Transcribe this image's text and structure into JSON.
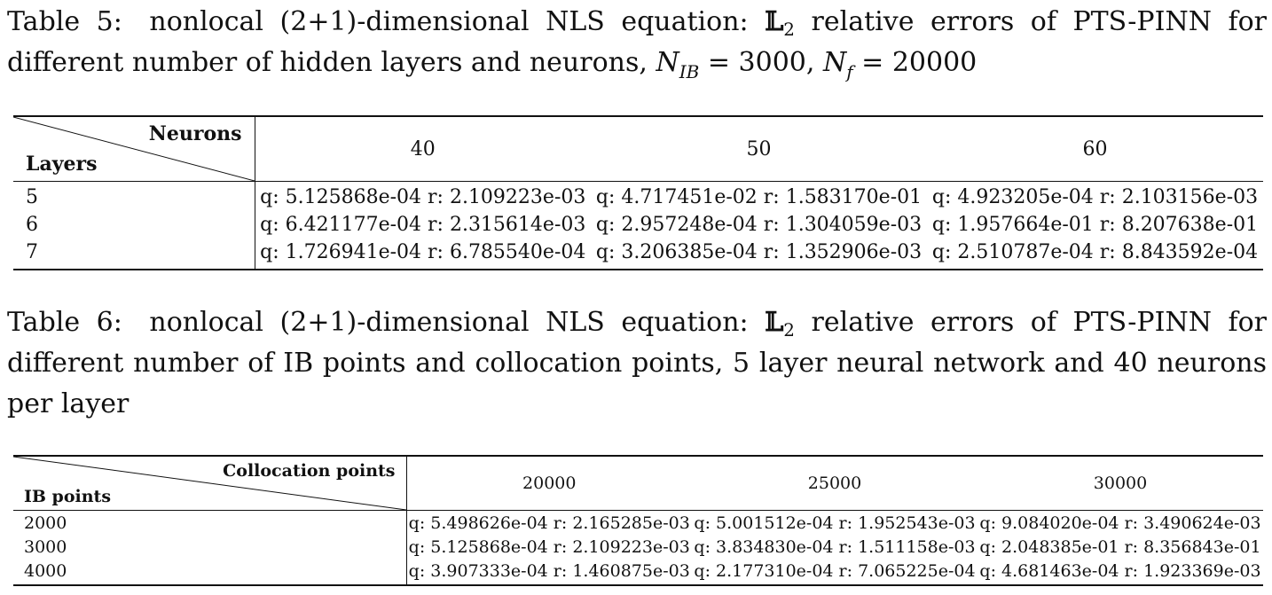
{
  "table5": {
    "caption_label": "Table 5:",
    "caption_text": "nonlocal (2+1)-dimensional NLS equation:",
    "caption_norm": "𝕃",
    "caption_norm_sub": "2",
    "caption_rest": "relative errors of PTS-PINN for different number of hidden layers and neurons,",
    "caption_nib_sym": "N",
    "caption_nib_sub": "IB",
    "caption_nib_val": "= 3000,",
    "caption_nf_sym": "N",
    "caption_nf_sub": "f",
    "caption_nf_val": "= 20000",
    "corner_col_label": "Neurons",
    "corner_row_label": "Layers",
    "columns": [
      "40",
      "50",
      "60"
    ],
    "rows": [
      {
        "label": "5",
        "cells": [
          "q: 5.125868e-04 r: 2.109223e-03",
          "q: 4.717451e-02 r: 1.583170e-01",
          "q: 4.923205e-04 r: 2.103156e-03"
        ]
      },
      {
        "label": "6",
        "cells": [
          "q: 6.421177e-04 r: 2.315614e-03",
          "q: 2.957248e-04 r: 1.304059e-03",
          "q: 1.957664e-01 r: 8.207638e-01"
        ]
      },
      {
        "label": "7",
        "cells": [
          "q: 1.726941e-04 r: 6.785540e-04",
          "q: 3.206385e-04 r: 1.352906e-03",
          "q: 2.510787e-04 r: 8.843592e-04"
        ]
      }
    ]
  },
  "table6": {
    "caption_label": "Table 6:",
    "caption_text": "nonlocal (2+1)-dimensional NLS equation:",
    "caption_norm": "𝕃",
    "caption_norm_sub": "2",
    "caption_rest": "relative errors of PTS-PINN for different number of IB points and collocation points, 5 layer neural network and 40 neurons per layer",
    "corner_col_label": "Collocation points",
    "corner_row_label": "IB points",
    "columns": [
      "20000",
      "25000",
      "30000"
    ],
    "rows": [
      {
        "label": "2000",
        "cells": [
          "q: 5.498626e-04 r: 2.165285e-03",
          "q: 5.001512e-04 r: 1.952543e-03",
          "q: 9.084020e-04 r: 3.490624e-03"
        ]
      },
      {
        "label": "3000",
        "cells": [
          "q: 5.125868e-04 r: 2.109223e-03",
          "q: 3.834830e-04 r: 1.511158e-03",
          "q: 2.048385e-01 r: 8.356843e-01"
        ]
      },
      {
        "label": "4000",
        "cells": [
          "q: 3.907333e-04 r: 1.460875e-03",
          "q: 2.177310e-04 r: 7.065225e-04",
          "q: 4.681463e-04 r: 1.923369e-03"
        ]
      }
    ]
  }
}
